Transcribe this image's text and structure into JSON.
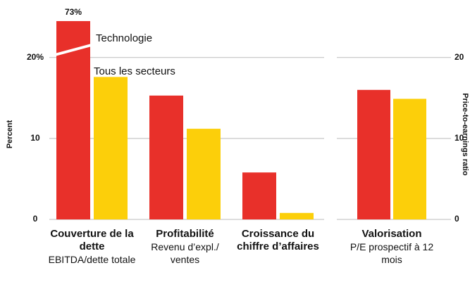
{
  "chart_data": [
    {
      "type": "bar",
      "ylabel": "Percent",
      "categories": [
        "Couverture de la dette",
        "Profitabilité",
        "Croissance du chiffre d’affaires"
      ],
      "category_notes": [
        "EBITDA/dette totale",
        "Revenu d’expl./ ventes",
        null
      ],
      "series": [
        {
          "name": "Technologie",
          "color": "#e8302a",
          "values": [
            73,
            15.3,
            5.8
          ],
          "value_labels": [
            "73%",
            null,
            null
          ]
        },
        {
          "name": "Tous les secteurs",
          "color": "#fccf0a",
          "values": [
            17.6,
            11.2,
            0.8
          ]
        }
      ],
      "ylim": [
        0,
        24.5
      ],
      "yticks": [
        0,
        10,
        {
          "value": 20,
          "label": "20%"
        }
      ],
      "grid": true
    },
    {
      "type": "bar",
      "ylabel": "Price-to-earnings ratio",
      "categories": [
        "Valorisation"
      ],
      "category_notes": [
        "P/E prospectif à 12 mois"
      ],
      "series": [
        {
          "name": "Technologie",
          "color": "#e8302a",
          "values": [
            16.0
          ]
        },
        {
          "name": "Tous les secteurs",
          "color": "#fccf0a",
          "values": [
            14.9
          ]
        }
      ],
      "ylim": [
        0,
        24.5
      ],
      "yticks": [
        0,
        10,
        20
      ],
      "grid": true
    }
  ]
}
